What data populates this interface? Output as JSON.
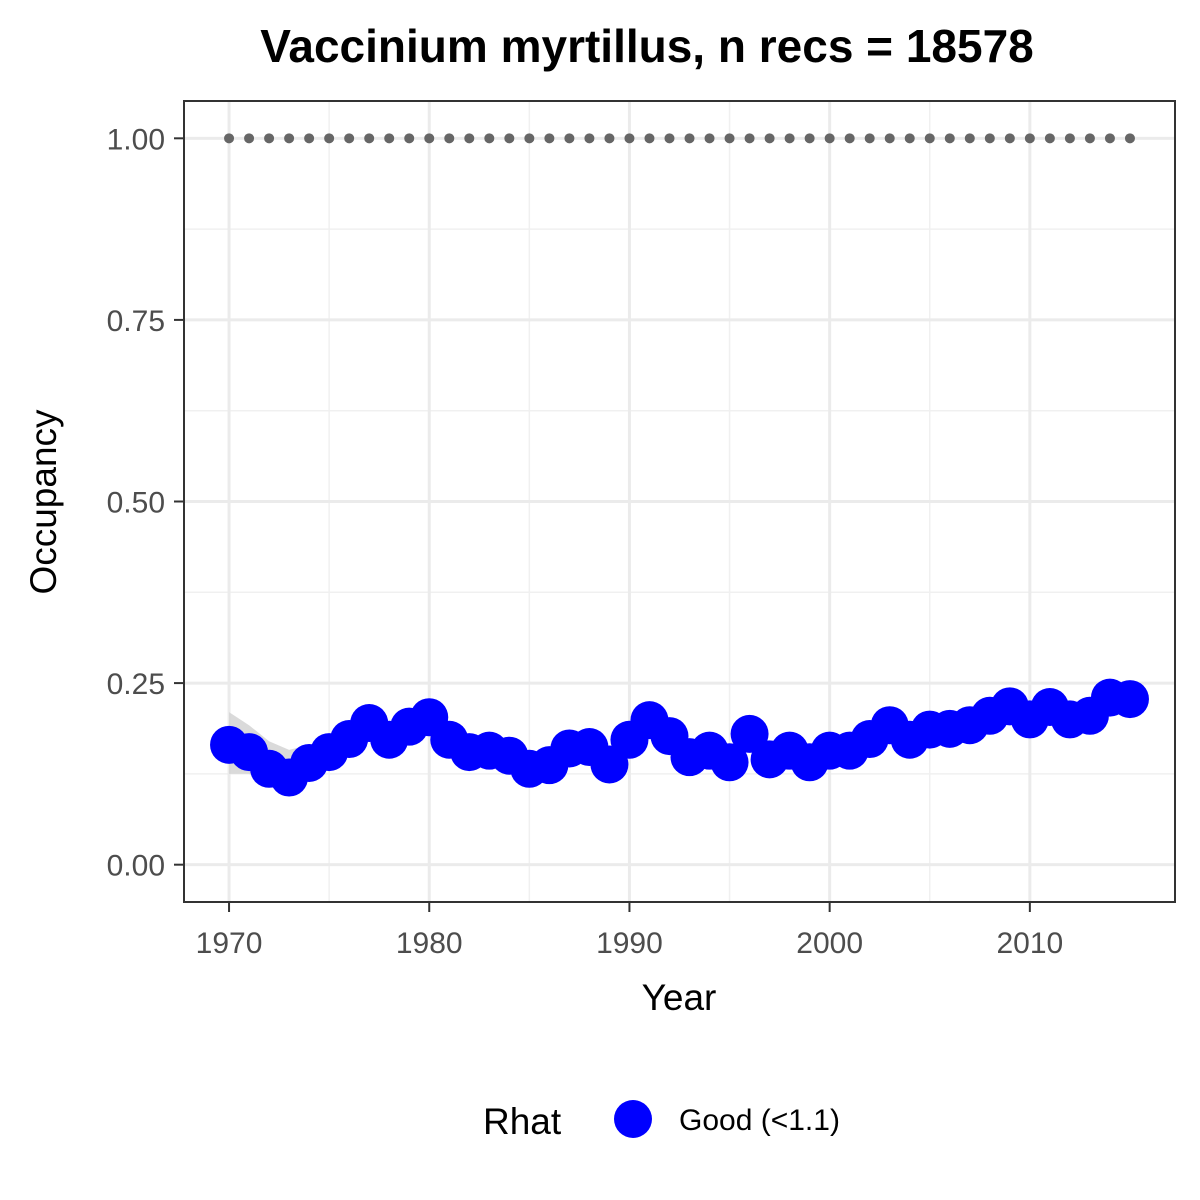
{
  "chart_data": {
    "type": "line",
    "title": "Vaccinium myrtillus, n recs = 18578",
    "xlabel": "Year",
    "ylabel": "Occupancy",
    "xlim": [
      1967.8,
      2017.2
    ],
    "ylim": [
      -0.05,
      1.05
    ],
    "x_ticks": [
      1970,
      1980,
      1990,
      2000,
      2010
    ],
    "x_tick_labels": [
      "1970",
      "1980",
      "1990",
      "2000",
      "2010"
    ],
    "y_ticks": [
      0,
      0.25,
      0.5,
      0.75,
      1.0
    ],
    "y_tick_labels": [
      "0.00",
      "0.25",
      "0.50",
      "0.75",
      "1.00"
    ],
    "grid": true,
    "legend": {
      "title": "Rhat",
      "position": "bottom",
      "entries": [
        {
          "label": "Good (<1.1)",
          "color": "#0000ff"
        }
      ]
    },
    "series": [
      {
        "name": "Good (<1.1)",
        "color": "#0000ff",
        "x": [
          1970,
          1971,
          1972,
          1973,
          1974,
          1975,
          1976,
          1977,
          1978,
          1979,
          1980,
          1981,
          1982,
          1983,
          1984,
          1985,
          1986,
          1987,
          1988,
          1989,
          1990,
          1991,
          1992,
          1993,
          1994,
          1995,
          1996,
          1997,
          1998,
          1999,
          2000,
          2001,
          2002,
          2003,
          2004,
          2005,
          2006,
          2007,
          2008,
          2009,
          2010,
          2011,
          2012,
          2013,
          2014,
          2015
        ],
        "y": [
          0.165,
          0.155,
          0.132,
          0.12,
          0.14,
          0.155,
          0.173,
          0.195,
          0.172,
          0.19,
          0.203,
          0.172,
          0.155,
          0.157,
          0.15,
          0.132,
          0.137,
          0.16,
          0.162,
          0.138,
          0.172,
          0.199,
          0.177,
          0.148,
          0.157,
          0.141,
          0.18,
          0.145,
          0.157,
          0.141,
          0.157,
          0.157,
          0.173,
          0.192,
          0.172,
          0.186,
          0.187,
          0.192,
          0.205,
          0.218,
          0.2,
          0.217,
          0.2,
          0.205,
          0.23,
          0.228
        ]
      },
      {
        "name": "",
        "color": "#666666",
        "style": "dotted",
        "x": [
          1970,
          1971,
          1972,
          1973,
          1974,
          1975,
          1976,
          1977,
          1978,
          1979,
          1980,
          1981,
          1982,
          1983,
          1984,
          1985,
          1986,
          1987,
          1988,
          1989,
          1990,
          1991,
          1992,
          1993,
          1994,
          1995,
          1996,
          1997,
          1998,
          1999,
          2000,
          2001,
          2002,
          2003,
          2004,
          2005,
          2006,
          2007,
          2008,
          2009,
          2010,
          2011,
          2012,
          2013,
          2014,
          2015
        ],
        "y": [
          1,
          1,
          1,
          1,
          1,
          1,
          1,
          1,
          1,
          1,
          1,
          1,
          1,
          1,
          1,
          1,
          1,
          1,
          1,
          1,
          1,
          1,
          1,
          1,
          1,
          1,
          1,
          1,
          1,
          1,
          1,
          1,
          1,
          1,
          1,
          1,
          1,
          1,
          1,
          1,
          1,
          1,
          1,
          1,
          1,
          1
        ]
      }
    ],
    "ribbon": {
      "color": "#d3d3d3",
      "x": [
        1970,
        1971,
        1972,
        1973,
        1974,
        1975,
        1976
      ],
      "upper": [
        0.21,
        0.192,
        0.17,
        0.158,
        0.165,
        0.172,
        0.185
      ],
      "lower": [
        0.125,
        0.125,
        0.11,
        0.1,
        0.118,
        0.14,
        0.158
      ]
    }
  }
}
